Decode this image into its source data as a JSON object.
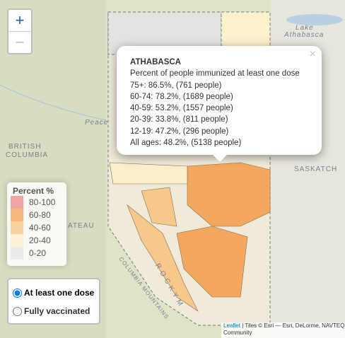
{
  "zoom": {
    "in": "+",
    "out": "−"
  },
  "map_labels": {
    "lake": "Lake",
    "athabasca": "Athabasca",
    "bc1": "BRITISH",
    "bc2": "COLUMBIA",
    "sask": "SASKATCH",
    "peace": "Peace",
    "plateau": "ATEAU",
    "mountains": "COLUMBIA MOUNTAINS",
    "rocky": "R O C K Y   M"
  },
  "popup": {
    "close": "×",
    "title": "ATHABASCA",
    "subtitle": "Percent of people immunized at least one dose",
    "lines": [
      "75+: 86.5%, (761 people)",
      "60-74: 78.2%, (1689 people)",
      "40-59: 53.2%, (1557 people)",
      "20-39: 33.8%, (811 people)",
      "12-19: 47.2%, (296 people)",
      "All ages: 48.2%, (5138 people)"
    ]
  },
  "legend": {
    "title": "Percent %",
    "items": [
      {
        "label": "80-100",
        "color": "#ee8f8f"
      },
      {
        "label": "60-80",
        "color": "#f4a85e"
      },
      {
        "label": "40-60",
        "color": "#f8c88a"
      },
      {
        "label": "20-40",
        "color": "#fdefcc"
      },
      {
        "label": "0-20",
        "color": "#e6e6e6"
      }
    ]
  },
  "radio": {
    "options": [
      "At least one dose",
      "Fully vaccinated"
    ]
  },
  "attribution": {
    "link": "Leaflet",
    "text": "| Tiles © Esri — Esri, DeLorme, NAVTEQ",
    "line2": "Community"
  }
}
